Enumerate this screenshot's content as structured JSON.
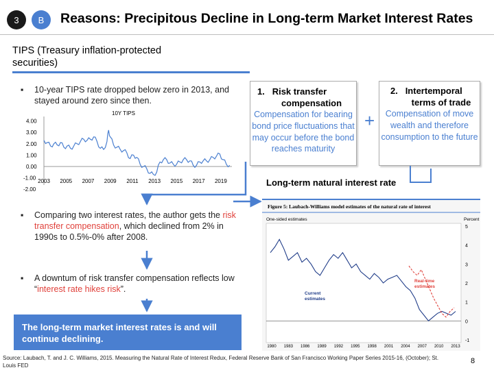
{
  "header": {
    "badge_number": "3",
    "badge_letter": "B",
    "title": "Reasons:  Precipitous Decline in Long-term Market Interest Rates"
  },
  "tips": {
    "heading": "TIPS (Treasury inflation-protected securities)",
    "bullet1": "10-year TIPS rate dropped below zero in 2013, and stayed around zero since then."
  },
  "chart_data": {
    "type": "line",
    "title": "",
    "legend": "10Y TIPS",
    "xlabel": "",
    "ylabel": "",
    "x_ticks": [
      "2003",
      "2005",
      "2007",
      "2009",
      "2011",
      "2013",
      "2015",
      "2017",
      "2019"
    ],
    "y_ticks": [
      "4.00",
      "3.00",
      "2.00",
      "1.00",
      "0.00",
      "-1.00",
      "-2.00"
    ],
    "ylim": [
      -2,
      4
    ],
    "xlim": [
      2003,
      2020
    ],
    "series": [
      {
        "name": "10Y TIPS",
        "x": [
          2003.0,
          2003.3,
          2003.6,
          2003.9,
          2004.2,
          2004.5,
          2004.8,
          2005.1,
          2005.4,
          2005.7,
          2006.0,
          2006.3,
          2006.6,
          2006.9,
          2007.2,
          2007.5,
          2007.8,
          2008.1,
          2008.4,
          2008.7,
          2008.85,
          2009.0,
          2009.3,
          2009.6,
          2009.9,
          2010.2,
          2010.5,
          2010.8,
          2011.1,
          2011.4,
          2011.7,
          2012.0,
          2012.3,
          2012.6,
          2012.9,
          2013.2,
          2013.5,
          2013.8,
          2014.1,
          2014.4,
          2014.7,
          2015.0,
          2015.3,
          2015.6,
          2015.9,
          2016.2,
          2016.5,
          2016.8,
          2017.1,
          2017.4,
          2017.7,
          2018.0,
          2018.3,
          2018.6,
          2018.9,
          2019.2,
          2019.5,
          2019.8
        ],
        "values": [
          2.3,
          2.1,
          1.8,
          2.0,
          1.9,
          2.1,
          1.7,
          1.8,
          1.6,
          1.8,
          2.0,
          2.2,
          2.4,
          2.3,
          2.4,
          2.6,
          2.2,
          1.6,
          1.5,
          2.2,
          3.2,
          2.6,
          1.9,
          1.7,
          1.5,
          1.4,
          1.2,
          0.7,
          1.0,
          0.8,
          0.2,
          0.0,
          -0.2,
          -0.6,
          -0.7,
          -0.5,
          0.4,
          0.6,
          0.6,
          0.3,
          0.2,
          0.2,
          0.4,
          0.6,
          0.6,
          0.5,
          0.1,
          0.1,
          0.4,
          0.5,
          0.5,
          0.6,
          0.8,
          0.9,
          1.1,
          0.6,
          0.2,
          0.1
        ]
      }
    ]
  },
  "mechanism": {
    "box1_number": "1.",
    "box1_title_a": "Risk transfer",
    "box1_title_b": "compensation",
    "box1_body": "Compensation for bearing bond price fluctuations that may occur before the bond reaches maturity",
    "plus": "+",
    "box2_number": "2.",
    "box2_title_a": "Intertemporal",
    "box2_title_b": "terms of trade",
    "box2_body": "Compensation of move wealth and therefore consumption to the future",
    "natural_rate": "Long-term natural interest rate"
  },
  "bullets": {
    "b2_pre": "Comparing two interest rates, the author gets the ",
    "b2_red": "risk transfer compensation",
    "b2_post": ", which declined from 2% in 1990s to 0.5%-0% after 2008.",
    "b3_pre": "A downtum of risk transfer compensation reflects low “",
    "b3_red": "interest rate hikes risk",
    "b3_post": "”."
  },
  "conclusion": "The long-term market interest rates is and will continue declining.",
  "figure": {
    "title": "Figure 5: Laubach-Williams model estimates of the natural rate of interest",
    "panel_label": "One-sided estimates",
    "unit": "Percent",
    "label_current_a": "Current",
    "label_current_b": "estimates",
    "label_realtime_a": "Real-time",
    "label_realtime_b": "estimates",
    "y_ticks": [
      "5",
      "4",
      "3",
      "2",
      "1",
      "0",
      "-1"
    ],
    "x_ticks": [
      "1980",
      "1983",
      "1986",
      "1989",
      "1992",
      "1995",
      "1998",
      "2001",
      "2004",
      "2007",
      "2010",
      "2013"
    ]
  },
  "footer": {
    "source": "Source: Laubach, T. and J. C. Williams, 2015. Measuring the Natural Rate of Interest Redux, Federal Reserve Bank of San Francisco Working Paper Series 2015-16, (October); St. Louis FED",
    "page": "8"
  },
  "colors": {
    "accent": "#4a7fd0",
    "red": "#e0403a"
  }
}
